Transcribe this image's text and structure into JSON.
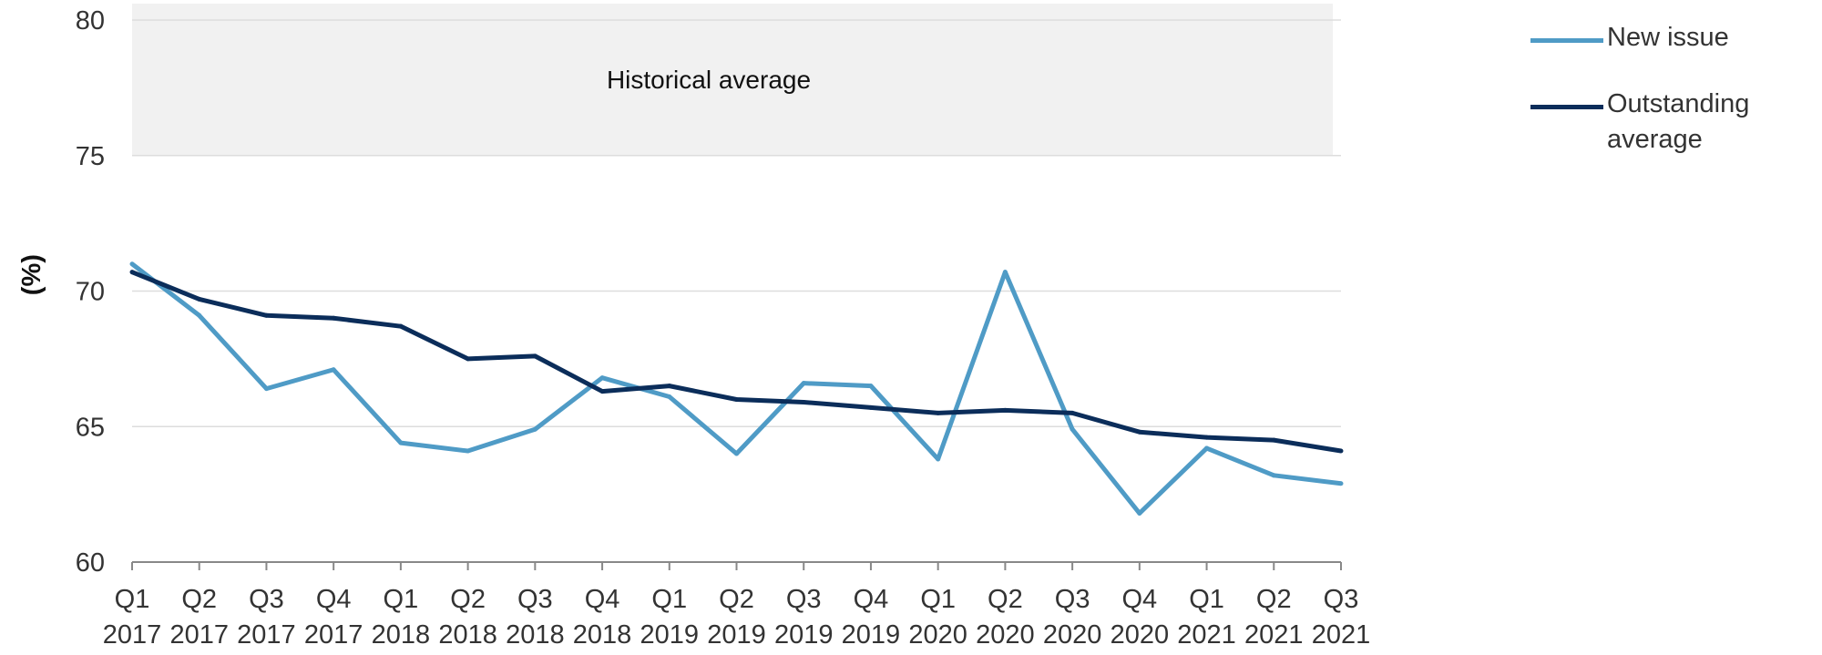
{
  "chart_data": {
    "type": "line",
    "categories": [
      [
        "Q1",
        "2017"
      ],
      [
        "Q2",
        "2017"
      ],
      [
        "Q3",
        "2017"
      ],
      [
        "Q4",
        "2017"
      ],
      [
        "Q1",
        "2018"
      ],
      [
        "Q2",
        "2018"
      ],
      [
        "Q3",
        "2018"
      ],
      [
        "Q4",
        "2018"
      ],
      [
        "Q1",
        "2019"
      ],
      [
        "Q2",
        "2019"
      ],
      [
        "Q3",
        "2019"
      ],
      [
        "Q4",
        "2019"
      ],
      [
        "Q1",
        "2020"
      ],
      [
        "Q2",
        "2020"
      ],
      [
        "Q3",
        "2020"
      ],
      [
        "Q4",
        "2020"
      ],
      [
        "Q1",
        "2021"
      ],
      [
        "Q2",
        "2021"
      ],
      [
        "Q3",
        "2021"
      ]
    ],
    "series": [
      {
        "name": "New issue",
        "color": "#4f9bc6",
        "values": [
          71.0,
          69.1,
          66.4,
          67.1,
          64.4,
          64.1,
          64.9,
          66.8,
          66.1,
          64.0,
          66.6,
          66.5,
          63.8,
          70.7,
          64.9,
          61.8,
          64.2,
          63.2,
          62.9
        ]
      },
      {
        "name": "Outstanding average",
        "color": "#0b2d5a",
        "values": [
          70.7,
          69.7,
          69.1,
          69.0,
          68.7,
          67.5,
          67.6,
          66.3,
          66.5,
          66.0,
          65.9,
          65.7,
          65.5,
          65.6,
          65.5,
          64.8,
          64.6,
          64.5,
          64.1
        ]
      }
    ],
    "ylim": [
      60,
      80
    ],
    "yticks": [
      60,
      65,
      70,
      75,
      80
    ],
    "ylabel": "(%)",
    "xlabel": "",
    "grid": true,
    "legend_position": "top-right",
    "shaded_band": {
      "label": "Historical average",
      "range": [
        75,
        80
      ],
      "color": "#f1f1f1"
    }
  }
}
